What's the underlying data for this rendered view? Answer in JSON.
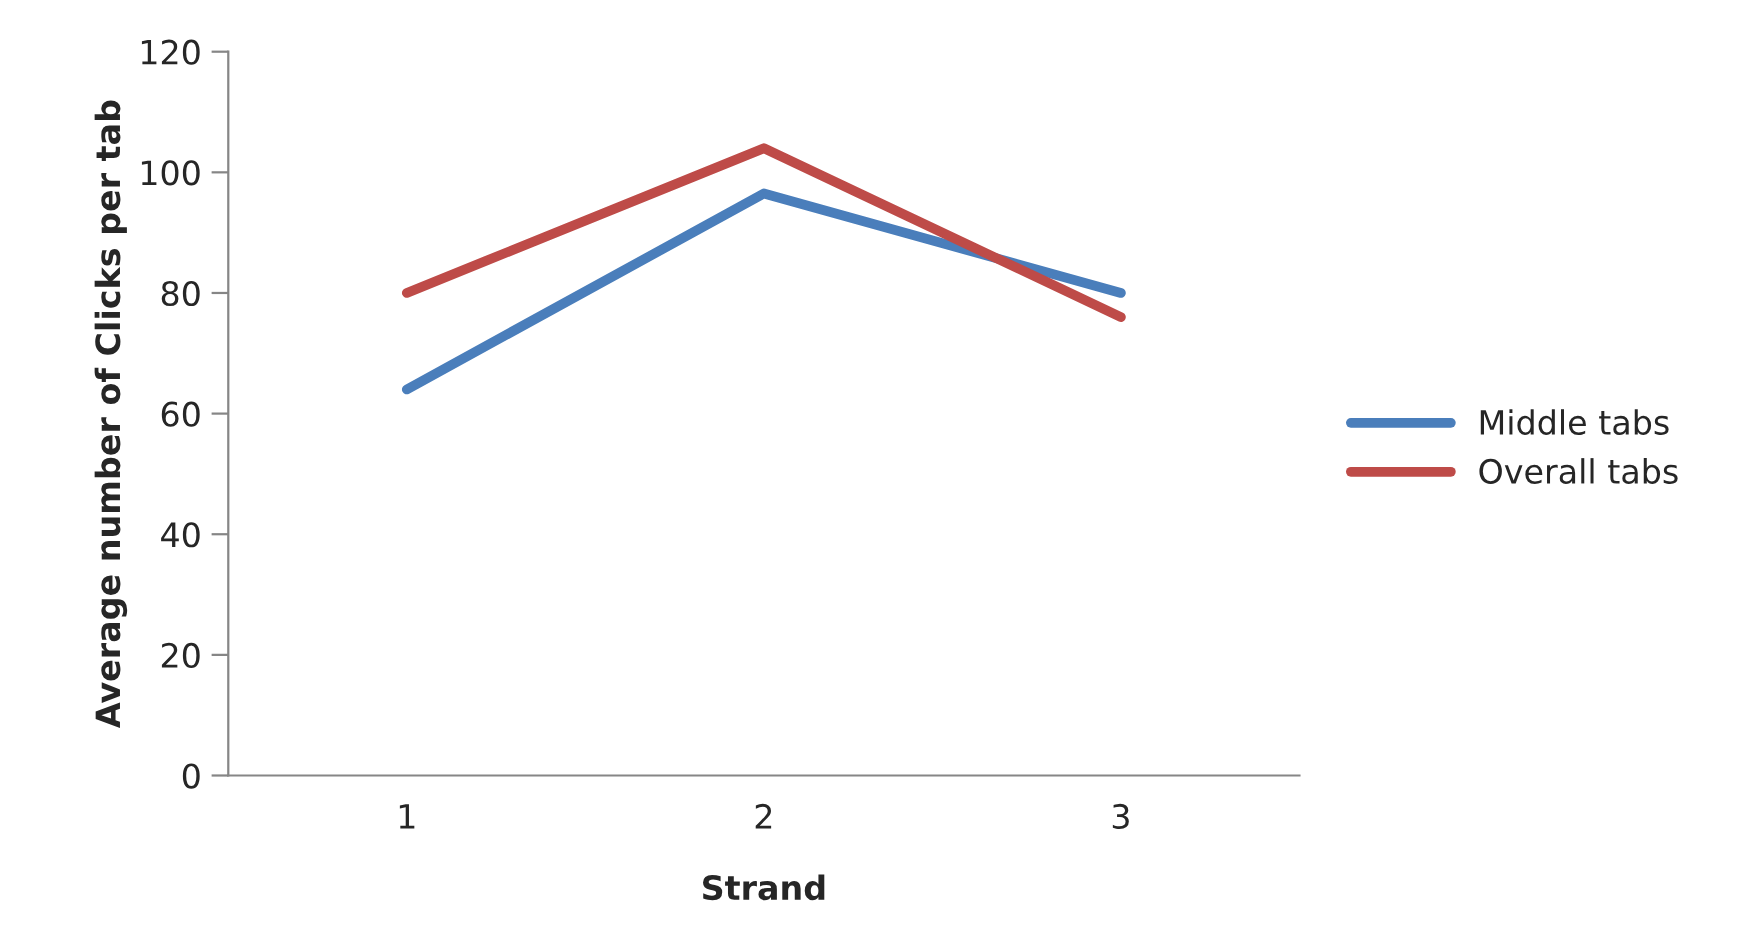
{
  "chart_data": {
    "type": "line",
    "xlabel": "Strand",
    "ylabel": "Average number of Clicks per tab",
    "categories": [
      "1",
      "2",
      "3"
    ],
    "series": [
      {
        "name": "Middle tabs",
        "color": "#4a7ebb",
        "values": [
          64,
          96.5,
          80
        ]
      },
      {
        "name": "Overall tabs",
        "color": "#be4b48",
        "values": [
          80,
          104,
          76
        ]
      }
    ],
    "ylim": [
      0,
      120
    ],
    "yticks": [
      0,
      20,
      40,
      60,
      80,
      100,
      120
    ],
    "grid": false,
    "legend": "right",
    "marker": "none",
    "line_style": "solid"
  }
}
